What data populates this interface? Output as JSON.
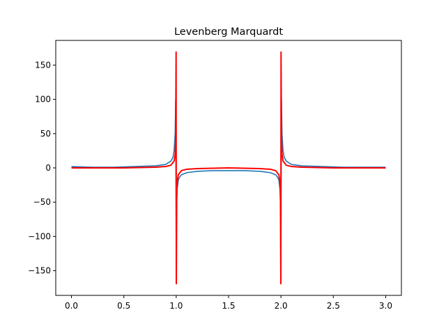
{
  "chart_data": {
    "type": "line",
    "title": "Levenberg Marquardt",
    "xlabel": "",
    "ylabel": "",
    "xlim": [
      -0.15,
      3.15
    ],
    "ylim": [
      -186,
      186
    ],
    "x_ticks": [
      0.0,
      0.5,
      1.0,
      1.5,
      2.0,
      2.5,
      3.0
    ],
    "x_tick_labels": [
      "0.0",
      "0.5",
      "1.0",
      "1.5",
      "2.0",
      "2.5",
      "3.0"
    ],
    "y_ticks": [
      150,
      100,
      50,
      0,
      -50,
      -100,
      -150
    ],
    "y_tick_labels": [
      "150",
      "100",
      "50",
      "0",
      "−50",
      "−100",
      "−150"
    ],
    "grid": false,
    "legend": "none",
    "series": [
      {
        "color": "#1f77b4",
        "style": "noisy data",
        "x": [
          0.0,
          0.2,
          0.4,
          0.6,
          0.8,
          0.9,
          0.95,
          0.97,
          0.98,
          0.99,
          0.995,
          1.0,
          1.005,
          1.01,
          1.02,
          1.03,
          1.05,
          1.1,
          1.2,
          1.35,
          1.5,
          1.65,
          1.8,
          1.9,
          1.95,
          1.97,
          1.98,
          1.99,
          1.995,
          2.0,
          2.005,
          2.01,
          2.02,
          2.03,
          2.05,
          2.1,
          2.2,
          2.4,
          2.6,
          2.8,
          3.0
        ],
        "y": [
          2,
          1,
          1,
          2,
          3,
          5,
          10,
          16,
          25,
          50,
          100,
          -100,
          -50,
          -30,
          -18,
          -14,
          -10,
          -7,
          -5,
          -4,
          -4,
          -4,
          -5,
          -7,
          -10,
          -14,
          -18,
          -30,
          -50,
          -100,
          100,
          50,
          25,
          16,
          10,
          5,
          3,
          2,
          1,
          1,
          1
        ]
      },
      {
        "color": "#ff0000",
        "style": "fit",
        "x": [
          0.0,
          0.5,
          0.8,
          0.9,
          0.95,
          0.98,
          0.99,
          0.995,
          0.999,
          1.001,
          1.005,
          1.01,
          1.02,
          1.05,
          1.1,
          1.2,
          1.5,
          1.8,
          1.9,
          1.95,
          1.98,
          1.99,
          1.995,
          1.999,
          2.001,
          2.005,
          2.01,
          2.02,
          2.05,
          2.1,
          2.2,
          2.5,
          3.0
        ],
        "y": [
          0,
          0,
          1,
          2,
          4,
          10,
          20,
          40,
          169,
          -169,
          -40,
          -20,
          -10,
          -4,
          -2,
          -1,
          0,
          -1,
          -2,
          -4,
          -10,
          -20,
          -40,
          -169,
          169,
          40,
          20,
          10,
          4,
          2,
          1,
          0,
          0
        ]
      }
    ]
  }
}
